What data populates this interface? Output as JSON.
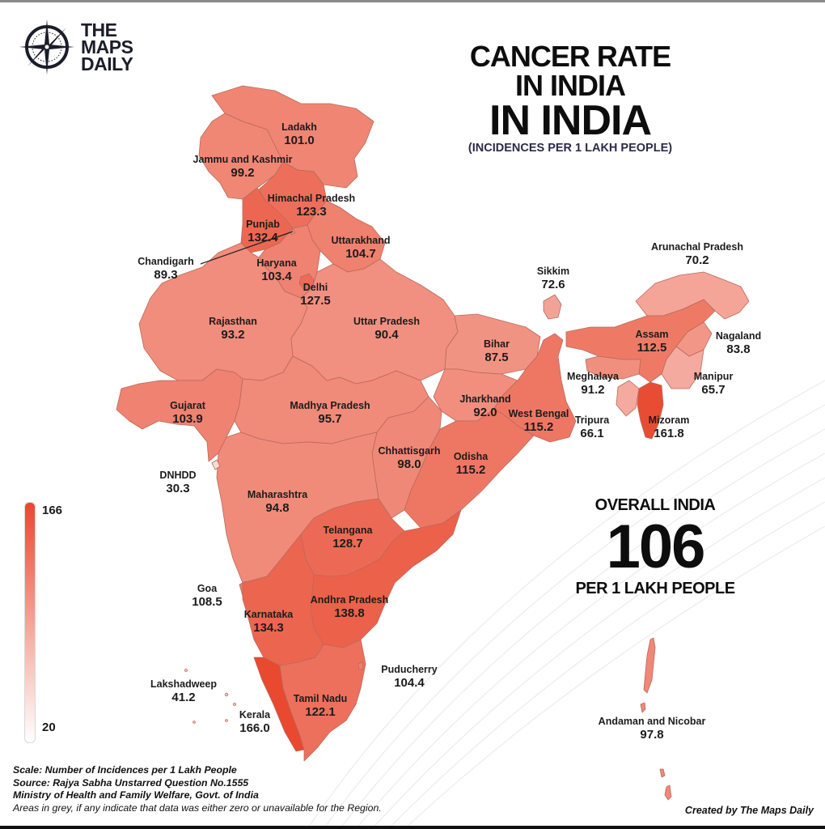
{
  "brand": {
    "logo_icon": "compass-icon",
    "lines": [
      "THE",
      "MAPS",
      "DAILY"
    ]
  },
  "title": {
    "line1": "CANCER RATE",
    "line2": "IN INDIA",
    "line3": "IN INDIA",
    "subtitle": "(INCIDENCES PER 1 LAKH PEOPLE)"
  },
  "legend": {
    "max_label": "166",
    "min_label": "20",
    "max": 166,
    "min": 20,
    "color_high": "#e8492f",
    "color_low": "#ffffff"
  },
  "overall": {
    "heading": "OVERALL INDIA",
    "value": "106",
    "unit": "PER 1 LAKH PEOPLE"
  },
  "footer": {
    "line1": "Scale: Number of Incidences per 1 Lakh People",
    "line2": "Source: Rajya Sabha Unstarred Question No.1555",
    "line3": "Ministry of Health and Family Welfare, Govt. of India",
    "line4": "Areas in grey, if any indicate that data was either zero or unavailable for the Region.",
    "credit": "Created by The Maps Daily"
  },
  "chart_data": {
    "type": "choropleth",
    "title": "Cancer Rate in India",
    "subtitle": "(Incidences per 1 Lakh People)",
    "scale": {
      "min": 20,
      "max": 166,
      "low_color": "#ffffff",
      "high_color": "#e8492f"
    },
    "overall_india": 106,
    "regions": [
      {
        "id": "ladakh",
        "name": "Ladakh",
        "value": 101.0
      },
      {
        "id": "jk",
        "name": "Jammu and Kashmir",
        "value": 99.2
      },
      {
        "id": "hp",
        "name": "Himachal Pradesh",
        "value": 123.3
      },
      {
        "id": "punjab",
        "name": "Punjab",
        "value": 132.4
      },
      {
        "id": "chandigarh",
        "name": "Chandigarh",
        "value": 89.3
      },
      {
        "id": "uttarakhand",
        "name": "Uttarakhand",
        "value": 104.7
      },
      {
        "id": "haryana",
        "name": "Haryana",
        "value": 103.4
      },
      {
        "id": "delhi",
        "name": "Delhi",
        "value": 127.5
      },
      {
        "id": "rajasthan",
        "name": "Rajasthan",
        "value": 93.2
      },
      {
        "id": "up",
        "name": "Uttar Pradesh",
        "value": 90.4
      },
      {
        "id": "bihar",
        "name": "Bihar",
        "value": 87.5
      },
      {
        "id": "sikkim",
        "name": "Sikkim",
        "value": 72.6
      },
      {
        "id": "arunachal",
        "name": "Arunachal Pradesh",
        "value": 70.2
      },
      {
        "id": "assam",
        "name": "Assam",
        "value": 112.5
      },
      {
        "id": "nagaland",
        "name": "Nagaland",
        "value": 83.8
      },
      {
        "id": "meghalaya",
        "name": "Meghalaya",
        "value": 91.2
      },
      {
        "id": "manipur",
        "name": "Manipur",
        "value": 65.7
      },
      {
        "id": "tripura",
        "name": "Tripura",
        "value": 66.1
      },
      {
        "id": "mizoram",
        "name": "Mizoram",
        "value": 161.8
      },
      {
        "id": "gujarat",
        "name": "Gujarat",
        "value": 103.9
      },
      {
        "id": "mp",
        "name": "Madhya Pradesh",
        "value": 95.7
      },
      {
        "id": "jharkhand",
        "name": "Jharkhand",
        "value": 92.0
      },
      {
        "id": "wb",
        "name": "West Bengal",
        "value": 115.2
      },
      {
        "id": "dnhdd",
        "name": "DNHDD",
        "value": 30.3
      },
      {
        "id": "chhattisgarh",
        "name": "Chhattisgarh",
        "value": 98.0
      },
      {
        "id": "odisha",
        "name": "Odisha",
        "value": 115.2
      },
      {
        "id": "maharashtra",
        "name": "Maharashtra",
        "value": 94.8
      },
      {
        "id": "telangana",
        "name": "Telangana",
        "value": 128.7
      },
      {
        "id": "goa",
        "name": "Goa",
        "value": 108.5
      },
      {
        "id": "ap",
        "name": "Andhra Pradesh",
        "value": 138.8
      },
      {
        "id": "karnataka",
        "name": "Karnataka",
        "value": 134.3
      },
      {
        "id": "puducherry",
        "name": "Puducherry",
        "value": 104.4
      },
      {
        "id": "lakshadweep",
        "name": "Lakshadweep",
        "value": 41.2
      },
      {
        "id": "tn",
        "name": "Tamil Nadu",
        "value": 122.1
      },
      {
        "id": "kerala",
        "name": "Kerala",
        "value": 166.0
      },
      {
        "id": "andaman",
        "name": "Andaman and Nicobar",
        "value": 97.8
      }
    ]
  }
}
